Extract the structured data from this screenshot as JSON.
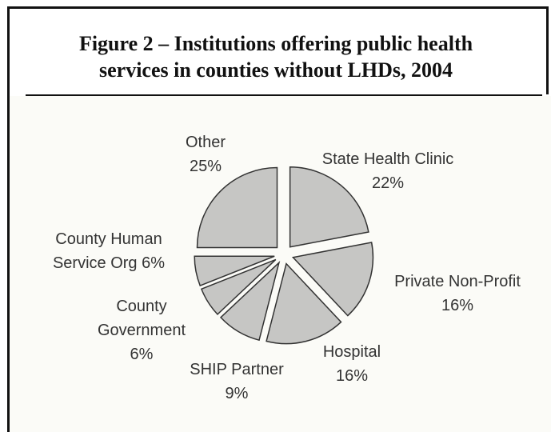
{
  "chart_data": {
    "type": "pie",
    "title": "Figure 2 – Institutions offering public health services in counties without LHDs, 2004",
    "slices": [
      {
        "name": "State Health Clinic",
        "value": 22,
        "label_lines": [
          "State Health Clinic",
          "22%"
        ]
      },
      {
        "name": "Private Non-Profit",
        "value": 16,
        "label_lines": [
          "Private Non-Profit",
          "16%"
        ]
      },
      {
        "name": "Hospital",
        "value": 16,
        "label_lines": [
          "Hospital",
          "16%"
        ]
      },
      {
        "name": "SHIP Partner",
        "value": 9,
        "label_lines": [
          "SHIP Partner",
          "9%"
        ]
      },
      {
        "name": "County Government",
        "value": 6,
        "label_lines": [
          "County",
          "Government",
          "6%"
        ]
      },
      {
        "name": "County Human Service Org",
        "value": 6,
        "label_lines": [
          "County Human",
          "Service Org 6%"
        ]
      },
      {
        "name": "Other",
        "value": 25,
        "label_lines": [
          "Other",
          "25%"
        ]
      }
    ],
    "slice_color": "#c6c6c4",
    "edge_color": "#333333"
  },
  "figure": {
    "title_line1": "Figure 2 – Institutions offering public health",
    "title_line2": "services in counties without LHDs, 2004"
  }
}
